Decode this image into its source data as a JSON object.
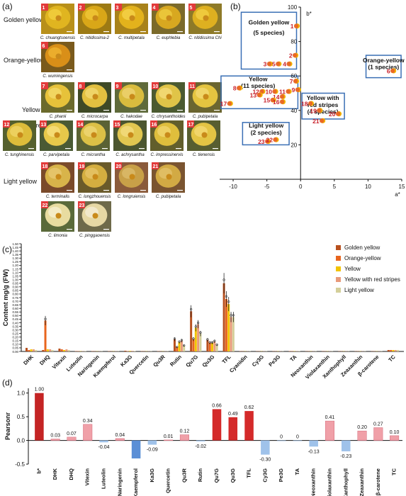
{
  "panel_a": {
    "label": "(a)",
    "rows": [
      {
        "name": "Golden yellow",
        "tiles": [
          {
            "n": "1",
            "species": "C. chuangtsoensis",
            "colors": [
              "#e0b520",
              "#f2d040",
              "#b8901a"
            ]
          },
          {
            "n": "2",
            "species": "C. nitidissima-2",
            "colors": [
              "#d9a718",
              "#f0c838",
              "#9c7a14"
            ]
          },
          {
            "n": "3",
            "species": "C. multipetala",
            "colors": [
              "#e3b21c",
              "#f5d24a",
              "#a8821a"
            ]
          },
          {
            "n": "4",
            "species": "C. euphlebia",
            "colors": [
              "#d8a820",
              "#efcc40",
              "#7b6a2a"
            ]
          },
          {
            "n": "5",
            "species": "C. nitidissima Chi",
            "colors": [
              "#deb020",
              "#f3d044",
              "#8e7a28"
            ]
          }
        ]
      },
      {
        "name": "Orange-yellow",
        "tiles": [
          {
            "n": "6",
            "species": "C. wumingensis",
            "colors": [
              "#d98f18",
              "#efb432",
              "#7a5a1c"
            ]
          }
        ]
      },
      {
        "name": "Yellow",
        "tiles": [
          {
            "n": "7",
            "species": "C. phanii",
            "colors": [
              "#e7c23a",
              "#f4da6a",
              "#6b6a2c"
            ]
          },
          {
            "n": "8",
            "species": "C. microcarpa",
            "colors": [
              "#e2c040",
              "#f2d870",
              "#3f4a26"
            ]
          },
          {
            "n": "9",
            "species": "C. hakodae",
            "colors": [
              "#d9bc3e",
              "#eed272",
              "#5f6a3a"
            ]
          },
          {
            "n": "10",
            "species": "C. chrysanthoides",
            "colors": [
              "#e0c448",
              "#f5dc7a",
              "#4b5a30"
            ]
          },
          {
            "n": "11",
            "species": "C. pubipetala",
            "colors": [
              "#e4c440",
              "#f3da72",
              "#6a6530"
            ]
          },
          {
            "n": "12",
            "species": "C. tunghinensis",
            "colors": [
              "#ddbc3a",
              "#f0d468",
              "#55602e"
            ]
          },
          {
            "n": "13",
            "species": "C. parvipetala",
            "colors": [
              "#e6c84a",
              "#f7e07e",
              "#4a5a34"
            ]
          },
          {
            "n": "14",
            "species": "C. micrantha",
            "colors": [
              "#dcc046",
              "#efd676",
              "#5a6234"
            ]
          },
          {
            "n": "15",
            "species": "C. achrysantha",
            "colors": [
              "#e1c650",
              "#f4dc80",
              "#4c5630"
            ]
          },
          {
            "n": "16",
            "species": "C. impressinervis",
            "colors": [
              "#dfbe3c",
              "#f1d66e",
              "#625e2c"
            ]
          },
          {
            "n": "17",
            "species": "C. tienensis",
            "colors": [
              "#e3c444",
              "#f4da74",
              "#585e30"
            ]
          }
        ]
      },
      {
        "name": "Yellow with red stripes",
        "tiles": [
          {
            "n": "18",
            "species": "C. terminalis",
            "colors": [
              "#d8b44a",
              "#e8c870",
              "#7a4a2a"
            ]
          },
          {
            "n": "19",
            "species": "C. lungzhouensis",
            "colors": [
              "#d4ae40",
              "#e6c468",
              "#6a5a2a"
            ]
          },
          {
            "n": "20",
            "species": "C. longruiensis",
            "colors": [
              "#c8a048",
              "#dcbc6c",
              "#8a5a3a"
            ]
          },
          {
            "n": "21",
            "species": "C. pubipetala",
            "colors": [
              "#d2aa44",
              "#e4c26c",
              "#7a5430"
            ]
          }
        ]
      },
      {
        "name": "Light yellow",
        "tiles": [
          {
            "n": "22",
            "species": "C. limonia",
            "colors": [
              "#e8dca0",
              "#f6f0d0",
              "#5a6a3a"
            ]
          },
          {
            "n": "23",
            "species": "C. pinggaoensis",
            "colors": [
              "#e6d8a4",
              "#f5eed4",
              "#6e6a4a"
            ]
          }
        ]
      }
    ]
  },
  "panel_b": {
    "label": "(b)",
    "x_axis_label": "a*",
    "y_axis_label": "b*",
    "x_ticks": [
      "-10",
      "-5",
      "0",
      "5",
      "10",
      "15"
    ],
    "y_ticks": [
      "20",
      "40",
      "60",
      "80",
      "100"
    ],
    "group_labels": [
      {
        "line1": "Golden yellow",
        "line2": "(5 species)"
      },
      {
        "line1": "Orange-yellow",
        "line2": "(1 species)"
      },
      {
        "line1": "Yellow",
        "line2": "(11 species)"
      },
      {
        "line1": "Yellow with",
        "line2": "red stripes",
        "line3": "(4 species)"
      },
      {
        "line1": "Light yellow",
        "line2": "(2 species)"
      }
    ]
  },
  "panel_c": {
    "label": "(c)",
    "ylabel": "Content mg/g (FW)",
    "yticks": [
      "0.00",
      "0.05",
      "0.10",
      "0.15",
      "0.20",
      "0.25",
      "0.30",
      "0.35",
      "0.40",
      "0.45",
      "0.50",
      "0.55",
      "0.60",
      "0.65",
      "0.70",
      "0.75",
      "0.80",
      "0.85",
      "0.90",
      "0.95",
      "1.00",
      "1.05",
      "1.10",
      "1.15",
      "1.20",
      "1.25",
      "1.30",
      "1.35",
      "1.40",
      "1.45",
      "1.50"
    ]
  },
  "panel_d": {
    "label": "(d)",
    "ylabel": "Pearsonr",
    "yticks": [
      "-0.5",
      "0.0",
      "0.5",
      "1.0"
    ]
  },
  "chart_data": [
    {
      "type": "scatter",
      "xlabel": "a*",
      "ylabel": "b*",
      "xlim": [
        -12,
        15
      ],
      "ylim": [
        0,
        100
      ],
      "points": [
        {
          "label": "1",
          "x": -0.5,
          "y": 89
        },
        {
          "label": "2",
          "x": -0.7,
          "y": 72
        },
        {
          "label": "3",
          "x": -4.5,
          "y": 67
        },
        {
          "label": "5",
          "x": -3.2,
          "y": 67
        },
        {
          "label": "4",
          "x": -1.6,
          "y": 67
        },
        {
          "label": "6",
          "x": 13.8,
          "y": 63
        },
        {
          "label": "7",
          "x": -0.6,
          "y": 57
        },
        {
          "label": "8",
          "x": -9.0,
          "y": 53
        },
        {
          "label": "9",
          "x": -0.3,
          "y": 52
        },
        {
          "label": "10",
          "x": -3.7,
          "y": 51
        },
        {
          "label": "11",
          "x": -1.7,
          "y": 51
        },
        {
          "label": "12",
          "x": -5.6,
          "y": 51
        },
        {
          "label": "13",
          "x": -6.0,
          "y": 49
        },
        {
          "label": "14",
          "x": -2.6,
          "y": 48
        },
        {
          "label": "15",
          "x": -4.0,
          "y": 46
        },
        {
          "label": "16",
          "x": -2.6,
          "y": 45
        },
        {
          "label": "17",
          "x": -10.4,
          "y": 44
        },
        {
          "label": "18",
          "x": 1.6,
          "y": 44
        },
        {
          "label": "19",
          "x": 2.9,
          "y": 40
        },
        {
          "label": "20",
          "x": 5.7,
          "y": 38
        },
        {
          "label": "21",
          "x": 3.3,
          "y": 34
        },
        {
          "label": "23",
          "x": -4.8,
          "y": 22
        },
        {
          "label": "22",
          "x": -3.6,
          "y": 23
        }
      ]
    },
    {
      "type": "bar",
      "ylabel": "Content mg/g (FW)",
      "ylim": [
        0,
        1.5
      ],
      "categories": [
        "DHK",
        "DHQ",
        "Vitexin",
        "Luteolin",
        "Naringenin",
        "Kaempferol",
        "Ka3G",
        "Quercetin",
        "Qu3R",
        "Rutin",
        "Qu7G",
        "Qu3G",
        "TFL",
        "Cyanidin",
        "Cy3G",
        "Pe3G",
        "TA",
        "Neoxanthin",
        "Violaxanthin",
        "Xanthophyll",
        "Zeaxanthin",
        "β-carotene",
        "TC"
      ],
      "series": [
        {
          "name": "Golden yellow",
          "color": "#b8501e",
          "values": [
            0.05,
            0.02,
            0.04,
            0.005,
            0.004,
            0.004,
            0.01,
            0.004,
            0.004,
            0.17,
            0.56,
            0.16,
            0.95,
            0.004,
            0.003,
            0.003,
            0.005,
            0.003,
            0.003,
            0.003,
            0.003,
            0.003,
            0.02
          ]
        },
        {
          "name": "Orange-yellow",
          "color": "#e8651e",
          "values": [
            0.02,
            0.43,
            0.03,
            0.004,
            0.003,
            0.003,
            0.005,
            0.003,
            0.003,
            0.06,
            0.17,
            0.12,
            0.73,
            0.003,
            0.003,
            0.003,
            0.004,
            0.003,
            0.003,
            0.003,
            0.003,
            0.003,
            0.02
          ]
        },
        {
          "name": "Yellow",
          "color": "#f2c300",
          "values": [
            0.03,
            0.03,
            0.02,
            0.004,
            0.003,
            0.003,
            0.008,
            0.003,
            0.003,
            0.13,
            0.33,
            0.12,
            0.66,
            0.003,
            0.003,
            0.003,
            0.004,
            0.003,
            0.003,
            0.003,
            0.003,
            0.003,
            0.02
          ]
        },
        {
          "name": "Yellow with red stripes",
          "color": "#e89a7a",
          "values": [
            0.03,
            0.03,
            0.03,
            0.004,
            0.003,
            0.003,
            0.008,
            0.003,
            0.003,
            0.15,
            0.38,
            0.14,
            0.48,
            0.003,
            0.003,
            0.003,
            0.004,
            0.003,
            0.003,
            0.003,
            0.003,
            0.003,
            0.02
          ]
        },
        {
          "name": "Light yellow",
          "color": "#d4cf9a",
          "values": [
            0.02,
            0.02,
            0.02,
            0.004,
            0.003,
            0.003,
            0.006,
            0.003,
            0.003,
            0.08,
            0.25,
            0.09,
            0.48,
            0.003,
            0.003,
            0.003,
            0.004,
            0.003,
            0.003,
            0.003,
            0.003,
            0.003,
            0.02
          ]
        }
      ]
    },
    {
      "type": "bar",
      "ylabel": "Pearsonr",
      "ylim": [
        -0.5,
        1.1
      ],
      "categories": [
        "b*",
        "DHK",
        "DHQ",
        "Vitexin",
        "Luteolin",
        "Naringenin",
        "Kaempferol",
        "Ka3G",
        "Quercetin",
        "Qu3R",
        "Rutin",
        "Qu7G",
        "Qu3G",
        "TFL",
        "Cy3G",
        "Pe3G",
        "TA",
        "Neoxanthin",
        "Violaxanthin",
        "Xanthophyll",
        "Zeaxanthin",
        "β-carotene",
        "TC"
      ],
      "values": [
        1.0,
        0.03,
        0.07,
        0.34,
        -0.04,
        0.04,
        -0.38,
        -0.09,
        0.01,
        0.12,
        -0.02,
        0.66,
        0.49,
        0.62,
        -0.3,
        0,
        0,
        -0.13,
        0.41,
        -0.23,
        0.2,
        0.27,
        0.1
      ],
      "value_labels": [
        "1.00",
        "0.03",
        "0.07",
        "0.34",
        "-0.04",
        "0.04",
        "",
        "-0.09",
        "0.01",
        "0.12",
        "-0.02",
        "0.66",
        "0.49",
        "0.62",
        "-0.30",
        "0",
        "0",
        "-0.13",
        "0.41",
        "-0.23",
        "0.20",
        "0.27",
        "0.10"
      ]
    }
  ]
}
